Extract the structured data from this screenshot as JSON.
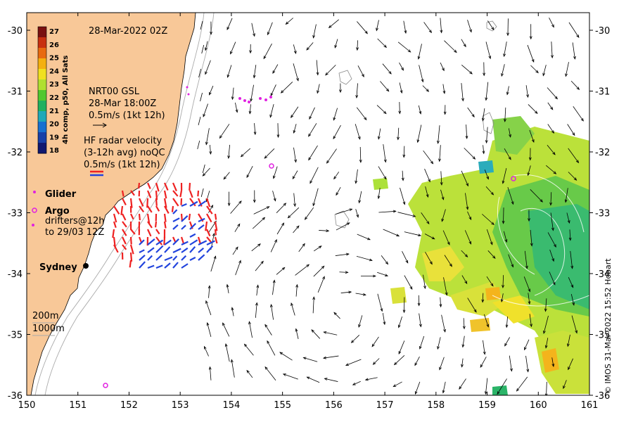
{
  "title": "28-Mar-2022 02Z",
  "credit": "© IMOS 31-Mar-2022 15:52 Hobart",
  "axes": {
    "x_ticks": [
      "150",
      "151",
      "152",
      "153",
      "154",
      "155",
      "156",
      "157",
      "158",
      "159",
      "160",
      "161"
    ],
    "y_ticks": [
      "-30",
      "-31",
      "-32",
      "-33",
      "-34",
      "-35",
      "-36"
    ]
  },
  "colorbar": {
    "label": "4h comp, p50, All Sats",
    "ticks": [
      "27",
      "26",
      "25",
      "24",
      "23",
      "22",
      "21",
      "20",
      "19",
      "18"
    ],
    "colors": [
      "#7a1010",
      "#c83010",
      "#e86a10",
      "#f4b010",
      "#f0e020",
      "#b0e030",
      "#50c830",
      "#20b060",
      "#20a8b8",
      "#1870d0",
      "#1840a8",
      "#101870"
    ]
  },
  "legend": {
    "nrt_title": "NRT00 GSL",
    "nrt_time": "28-Mar 18:00Z",
    "nrt_scale": "0.5m/s (1kt 12h)",
    "hf_title": "HF radar velocity",
    "hf_avg": "(3-12h avg) noQC",
    "hf_scale": "0.5m/s (1kt 12h)",
    "glider": "Glider",
    "argo": "Argo",
    "drifters_1": "drifters@12h",
    "drifters_2": "to 29/03 12Z",
    "contour_200": "200m",
    "contour_1000": "1000m"
  },
  "places": {
    "sydney": "Sydney"
  },
  "colors": {
    "land": "#f8c898",
    "radar_red": "#ee2222",
    "radar_blue": "#2244dd",
    "argo": "#e020e0"
  }
}
